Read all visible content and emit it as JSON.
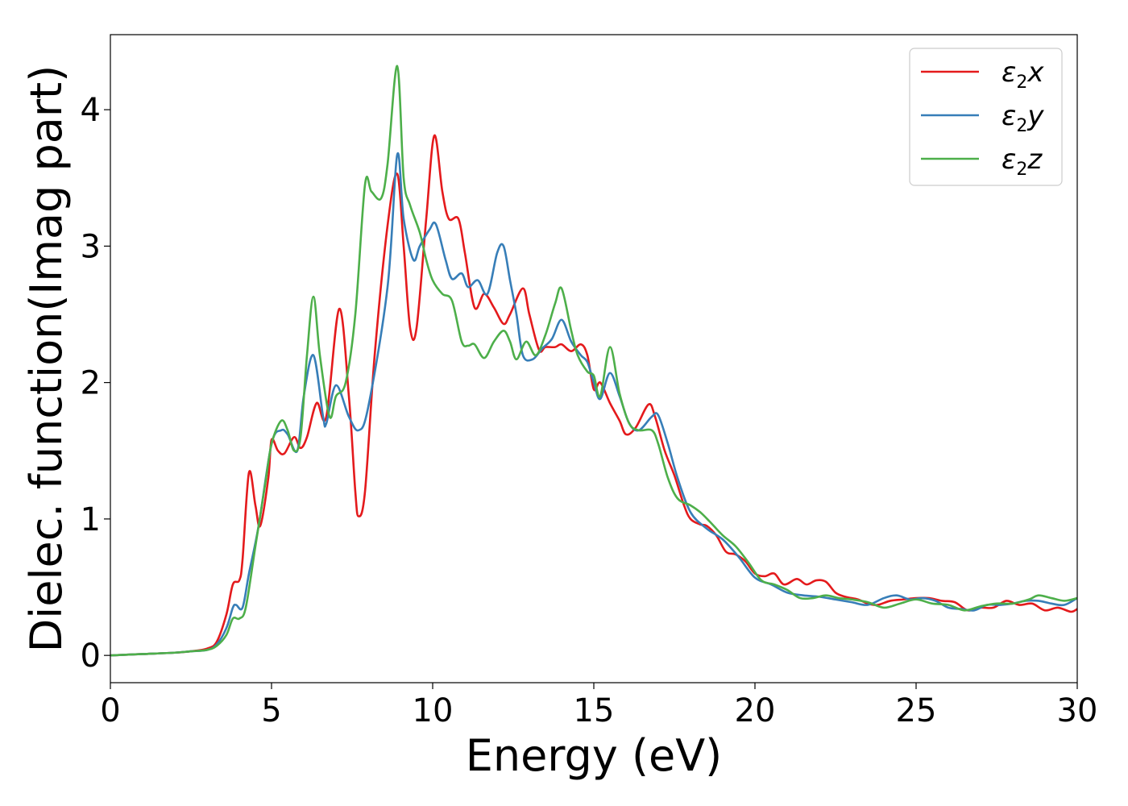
{
  "chart_data": {
    "type": "line",
    "xlabel": "Energy (eV)",
    "ylabel": "Dielec. function(Imag part)",
    "xlim": [
      0,
      30
    ],
    "ylim": [
      -0.2,
      4.55
    ],
    "xticks": [
      0,
      5,
      10,
      15,
      20,
      25,
      30
    ],
    "yticks": [
      0,
      1,
      2,
      3,
      4
    ],
    "grid": false,
    "legend_position": "top-right",
    "series": [
      {
        "name": "ε2x",
        "base": "ε",
        "sub": "2",
        "var": "x",
        "color": "#e41a1c",
        "x": [
          0,
          1,
          2,
          2.5,
          3,
          3.3,
          3.6,
          3.8,
          4.0,
          4.1,
          4.3,
          4.5,
          4.65,
          4.9,
          5.0,
          5.2,
          5.4,
          5.7,
          5.9,
          6.1,
          6.4,
          6.7,
          7.1,
          7.4,
          7.6,
          7.7,
          7.9,
          8.2,
          8.6,
          8.9,
          9.1,
          9.3,
          9.5,
          9.8,
          10.05,
          10.3,
          10.5,
          10.8,
          11.0,
          11.3,
          11.6,
          11.9,
          12.2,
          12.4,
          12.8,
          13.0,
          13.3,
          13.5,
          13.8,
          14.0,
          14.3,
          14.6,
          14.8,
          15.0,
          15.2,
          15.5,
          15.8,
          16.0,
          16.3,
          16.7,
          16.9,
          17.2,
          17.5,
          17.8,
          18.0,
          18.3,
          18.5,
          18.8,
          19.1,
          19.4,
          19.7,
          20.0,
          20.3,
          20.6,
          20.9,
          21.3,
          21.6,
          21.9,
          22.2,
          22.5,
          22.8,
          23.2,
          23.5,
          23.8,
          24.2,
          24.6,
          25.0,
          25.4,
          25.8,
          26.2,
          26.6,
          27.0,
          27.4,
          27.8,
          28.2,
          28.6,
          29.0,
          29.4,
          29.8,
          30.0
        ],
        "y": [
          0.0,
          0.01,
          0.02,
          0.03,
          0.05,
          0.1,
          0.3,
          0.52,
          0.55,
          0.7,
          1.34,
          1.1,
          0.95,
          1.3,
          1.58,
          1.5,
          1.48,
          1.6,
          1.52,
          1.6,
          1.85,
          1.75,
          2.54,
          1.9,
          1.2,
          1.02,
          1.2,
          2.2,
          3.15,
          3.53,
          3.0,
          2.4,
          2.4,
          3.2,
          3.81,
          3.4,
          3.2,
          3.2,
          2.95,
          2.55,
          2.65,
          2.55,
          2.43,
          2.5,
          2.69,
          2.5,
          2.24,
          2.26,
          2.26,
          2.28,
          2.23,
          2.28,
          2.2,
          1.95,
          2.0,
          1.85,
          1.72,
          1.62,
          1.67,
          1.84,
          1.75,
          1.5,
          1.32,
          1.1,
          1.0,
          0.96,
          0.95,
          0.88,
          0.76,
          0.74,
          0.69,
          0.6,
          0.58,
          0.6,
          0.52,
          0.56,
          0.52,
          0.55,
          0.54,
          0.46,
          0.43,
          0.41,
          0.38,
          0.37,
          0.4,
          0.41,
          0.42,
          0.42,
          0.4,
          0.39,
          0.33,
          0.35,
          0.35,
          0.4,
          0.37,
          0.38,
          0.33,
          0.35,
          0.32,
          0.34
        ]
      },
      {
        "name": "ε2y",
        "base": "ε",
        "sub": "2",
        "var": "y",
        "color": "#377eb8",
        "x": [
          0,
          1,
          2,
          2.5,
          3,
          3.3,
          3.6,
          3.8,
          3.9,
          4.1,
          4.3,
          4.6,
          5.0,
          5.3,
          5.5,
          5.8,
          6.0,
          6.3,
          6.6,
          6.7,
          7.0,
          7.4,
          7.7,
          8.0,
          8.6,
          8.9,
          9.1,
          9.4,
          9.6,
          9.9,
          10.1,
          10.4,
          10.6,
          10.9,
          11.1,
          11.4,
          11.7,
          12.0,
          12.2,
          12.4,
          12.6,
          12.8,
          13.1,
          13.4,
          13.7,
          14.0,
          14.3,
          14.6,
          14.8,
          15.0,
          15.2,
          15.5,
          15.8,
          16.1,
          16.4,
          16.8,
          17.0,
          17.3,
          17.6,
          18.0,
          18.5,
          19.0,
          19.5,
          20.0,
          20.5,
          21.0,
          21.5,
          22.0,
          22.5,
          23.0,
          23.5,
          24.0,
          24.4,
          24.8,
          25.2,
          25.6,
          26.0,
          26.4,
          26.8,
          27.2,
          27.6,
          28.0,
          28.4,
          28.8,
          29.2,
          29.6,
          30.0
        ],
        "y": [
          0.0,
          0.01,
          0.02,
          0.03,
          0.04,
          0.08,
          0.2,
          0.35,
          0.37,
          0.35,
          0.6,
          0.95,
          1.55,
          1.65,
          1.62,
          1.5,
          1.9,
          2.2,
          1.75,
          1.7,
          1.98,
          1.75,
          1.65,
          1.82,
          2.7,
          3.67,
          3.2,
          2.9,
          3.0,
          3.12,
          3.16,
          2.9,
          2.76,
          2.8,
          2.7,
          2.75,
          2.65,
          2.95,
          3.0,
          2.75,
          2.5,
          2.2,
          2.17,
          2.25,
          2.32,
          2.46,
          2.3,
          2.2,
          2.15,
          2.0,
          1.88,
          2.07,
          1.9,
          1.7,
          1.65,
          1.75,
          1.76,
          1.55,
          1.3,
          1.05,
          0.93,
          0.85,
          0.72,
          0.57,
          0.52,
          0.46,
          0.44,
          0.43,
          0.41,
          0.39,
          0.37,
          0.42,
          0.44,
          0.41,
          0.42,
          0.4,
          0.35,
          0.34,
          0.33,
          0.37,
          0.37,
          0.38,
          0.4,
          0.4,
          0.38,
          0.37,
          0.42
        ]
      },
      {
        "name": "ε2z",
        "base": "ε",
        "sub": "2",
        "var": "z",
        "color": "#4daf4a",
        "x": [
          0,
          1,
          2,
          2.5,
          3,
          3.3,
          3.6,
          3.8,
          4.0,
          4.2,
          4.5,
          4.8,
          5.0,
          5.3,
          5.5,
          5.7,
          5.9,
          6.1,
          6.3,
          6.5,
          6.8,
          7.0,
          7.3,
          7.6,
          7.9,
          8.1,
          8.4,
          8.6,
          8.9,
          9.1,
          9.3,
          9.6,
          9.8,
          10.0,
          10.3,
          10.6,
          10.9,
          11.1,
          11.3,
          11.6,
          11.9,
          12.2,
          12.4,
          12.6,
          12.9,
          13.2,
          13.5,
          13.8,
          14.0,
          14.3,
          14.5,
          14.8,
          15.0,
          15.2,
          15.5,
          15.8,
          16.1,
          16.4,
          16.8,
          17.0,
          17.3,
          17.6,
          18.0,
          18.3,
          18.6,
          19.0,
          19.4,
          19.8,
          20.2,
          20.6,
          21.0,
          21.4,
          21.8,
          22.2,
          22.6,
          23.0,
          23.5,
          24.0,
          24.5,
          25.0,
          25.5,
          26.0,
          26.5,
          27.0,
          27.5,
          28.0,
          28.5,
          28.8,
          29.2,
          29.6,
          30.0
        ],
        "y": [
          0.0,
          0.01,
          0.02,
          0.03,
          0.04,
          0.07,
          0.15,
          0.27,
          0.27,
          0.35,
          0.8,
          1.25,
          1.55,
          1.72,
          1.65,
          1.5,
          1.6,
          2.2,
          2.63,
          2.2,
          1.75,
          1.9,
          2.0,
          2.5,
          3.45,
          3.4,
          3.35,
          3.6,
          4.32,
          3.5,
          3.3,
          3.1,
          2.9,
          2.75,
          2.65,
          2.6,
          2.3,
          2.27,
          2.28,
          2.18,
          2.3,
          2.38,
          2.3,
          2.17,
          2.3,
          2.2,
          2.35,
          2.58,
          2.69,
          2.38,
          2.2,
          2.08,
          2.05,
          1.9,
          2.26,
          1.92,
          1.7,
          1.65,
          1.65,
          1.55,
          1.3,
          1.15,
          1.1,
          1.05,
          0.98,
          0.88,
          0.8,
          0.68,
          0.55,
          0.52,
          0.48,
          0.42,
          0.42,
          0.44,
          0.42,
          0.41,
          0.39,
          0.35,
          0.38,
          0.41,
          0.38,
          0.37,
          0.33,
          0.36,
          0.38,
          0.38,
          0.41,
          0.44,
          0.42,
          0.4,
          0.42
        ]
      }
    ]
  }
}
